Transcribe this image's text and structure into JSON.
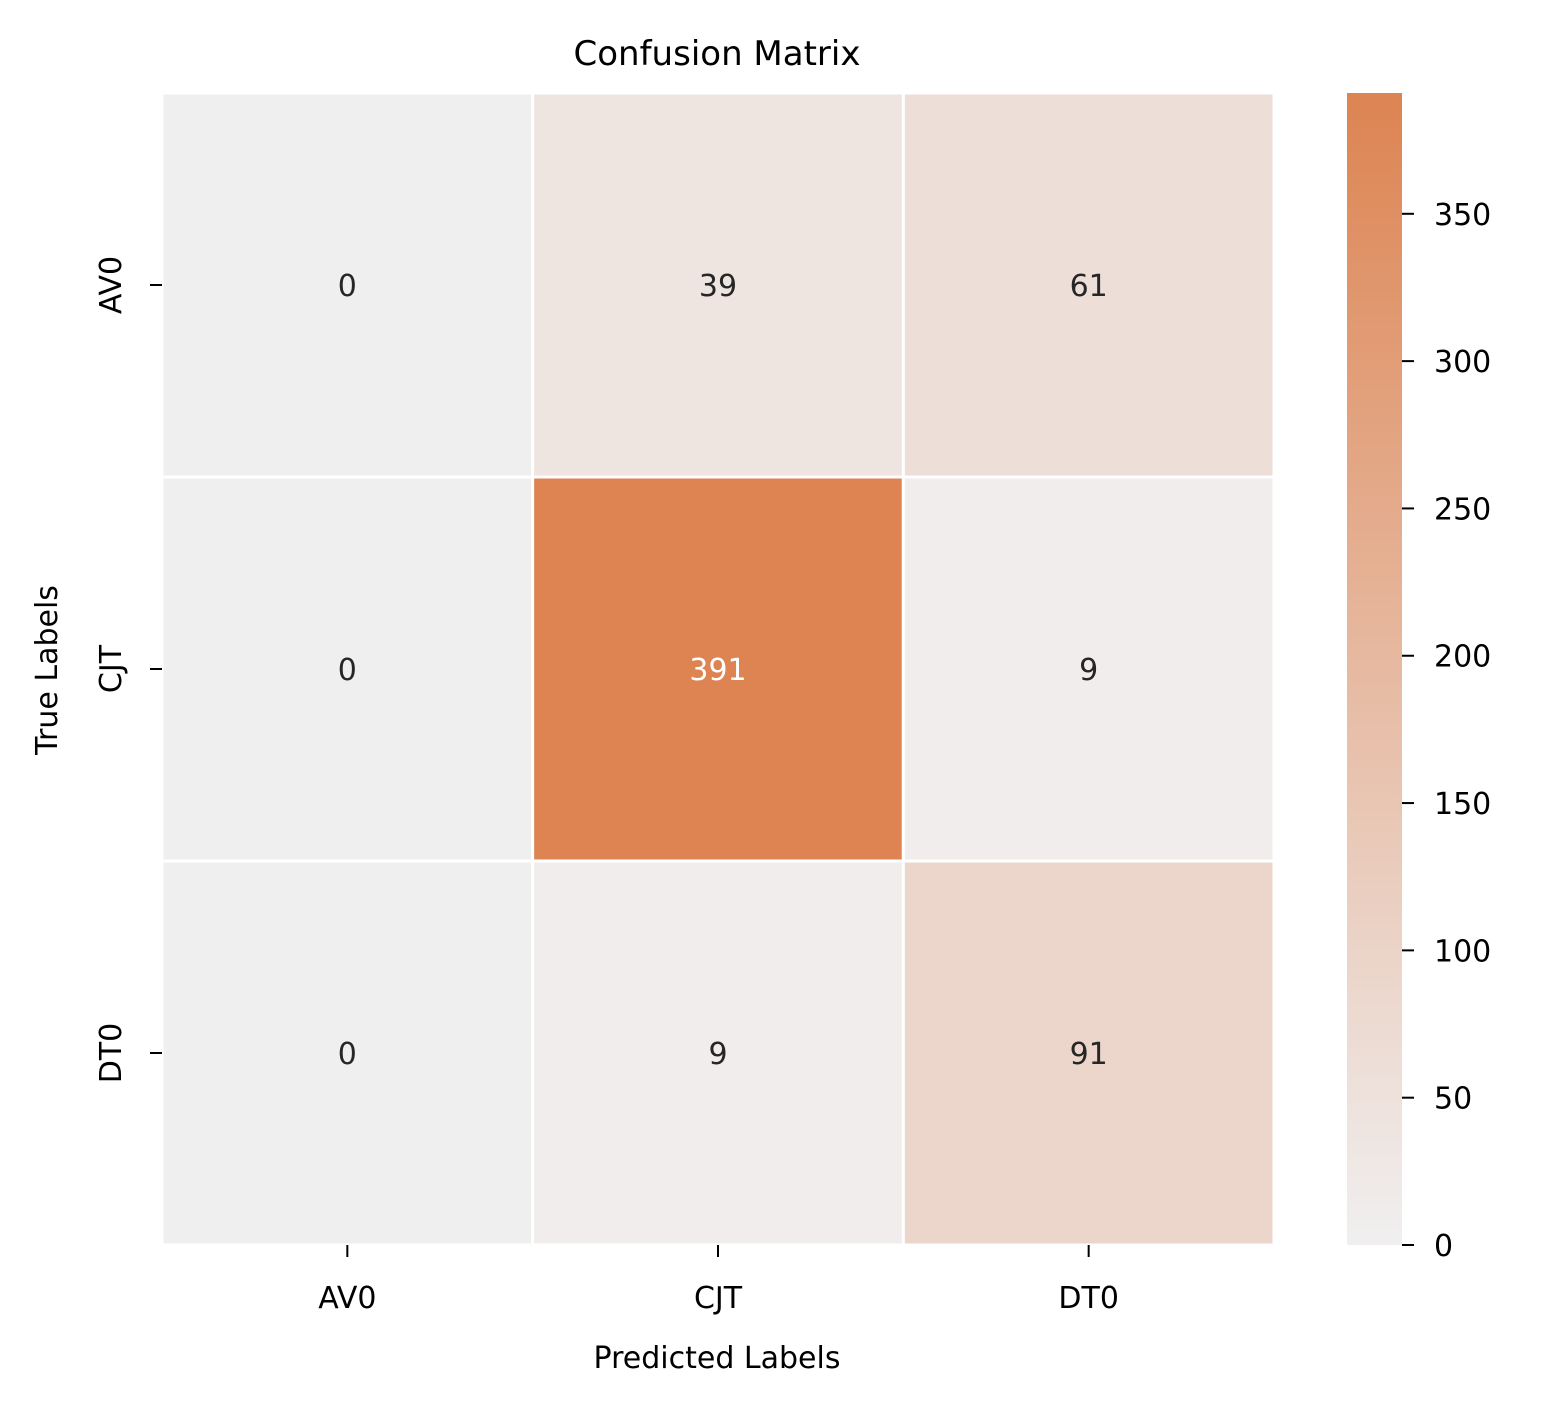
{
  "chart_data": {
    "type": "heatmap",
    "title": "Confusion Matrix",
    "xlabel": "Predicted Labels",
    "ylabel": "True Labels",
    "x_categories": [
      "AV0",
      "CJT",
      "DT0"
    ],
    "y_categories": [
      "AV0",
      "CJT",
      "DT0"
    ],
    "values": [
      [
        0,
        39,
        61
      ],
      [
        0,
        391,
        9
      ],
      [
        0,
        9,
        91
      ]
    ],
    "colorbar": {
      "range": [
        0,
        391
      ],
      "ticks": [
        0,
        50,
        100,
        150,
        200,
        250,
        300,
        350
      ],
      "tick_labels": [
        "0",
        "50",
        "100",
        "150",
        "200",
        "250",
        "300",
        "350"
      ],
      "color_low": "#f0eff0",
      "color_high": "#dd8452"
    },
    "annotation_colors": {
      "dark": "#262626",
      "light": "#ffffff"
    },
    "grid": false,
    "legend": "colorbar-right"
  }
}
